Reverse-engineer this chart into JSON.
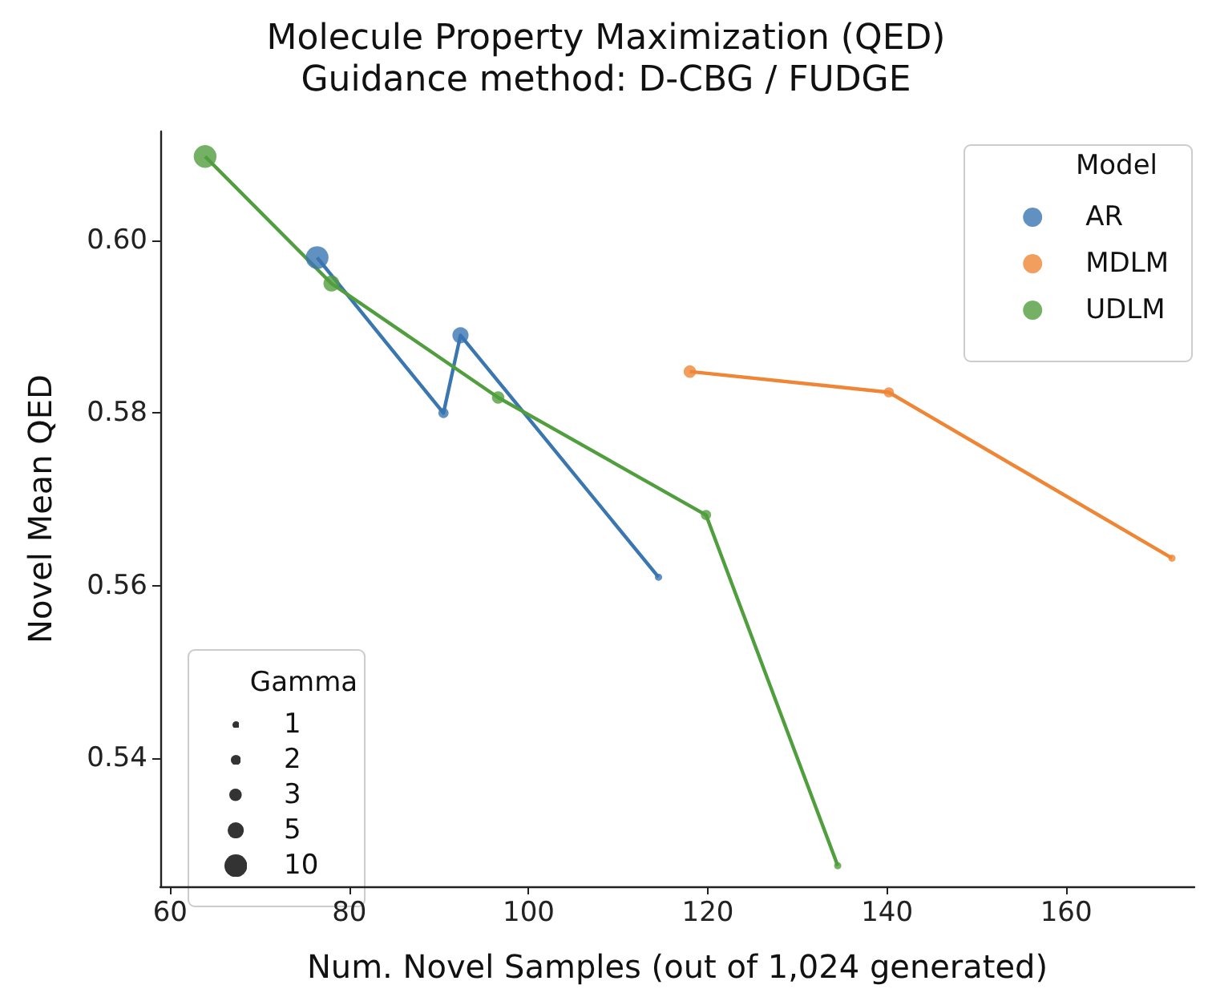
{
  "chart_data": {
    "type": "bubble",
    "title": "Molecule Property Maximization (QED)",
    "subtitle": "Guidance method: D-CBG / FUDGE",
    "xlabel": "Num. Novel Samples (out of 1,024 generated)",
    "ylabel": "Novel Mean QED",
    "legend_title": "Model",
    "annotations": [
      "Gamma"
    ],
    "xlim": [
      58.9,
      174.3
    ],
    "ylim": [
      0.5252,
      0.6126
    ],
    "xticks": [
      60,
      80,
      100,
      120,
      140,
      160
    ],
    "yticks": [
      0.54,
      0.56,
      0.58,
      {
        "value": 0.6,
        "label": "0.60"
      }
    ],
    "size_legend": [
      1,
      2,
      3,
      5,
      10
    ],
    "series": [
      {
        "type": "line",
        "marker": "none",
        "color": "#3a76b0",
        "x": [
          76.4,
          90.5,
          92.4,
          114.5
        ],
        "values": [
          0.598,
          0.58,
          0.589,
          0.561
        ]
      },
      {
        "type": "line",
        "marker": "none",
        "color": "#ef8636",
        "x": [
          118,
          140.2,
          171.8
        ],
        "values": [
          0.5848,
          0.5824,
          0.5632
        ]
      },
      {
        "type": "line",
        "marker": "none",
        "color": "#519e3f",
        "x": [
          63.9,
          78,
          96.6,
          119.8,
          134.5
        ],
        "values": [
          0.6097,
          0.595,
          0.5818,
          0.5682,
          0.5276
        ]
      },
      {
        "name": "AR",
        "color": "#3a76b0",
        "x": [
          76.4,
          90.5,
          92.4,
          114.5
        ],
        "values": [
          0.598,
          0.58,
          0.589,
          0.561
        ],
        "sizes": [
          10,
          2,
          5,
          1
        ]
      },
      {
        "name": "MDLM",
        "color": "#ef8636",
        "x": [
          118,
          140.2,
          171.8
        ],
        "values": [
          0.5848,
          0.5824,
          0.5632
        ],
        "sizes": [
          3,
          2,
          1
        ]
      },
      {
        "name": "UDLM",
        "color": "#519e3f",
        "x": [
          63.9,
          78,
          96.6,
          119.8,
          134.5
        ],
        "values": [
          0.6097,
          0.595,
          0.5818,
          0.5682,
          0.5276
        ],
        "sizes": [
          10,
          5,
          3,
          2,
          1
        ]
      }
    ],
    "grid": false,
    "legend": "top right",
    "marker": "circle",
    "line_style": "solid"
  }
}
